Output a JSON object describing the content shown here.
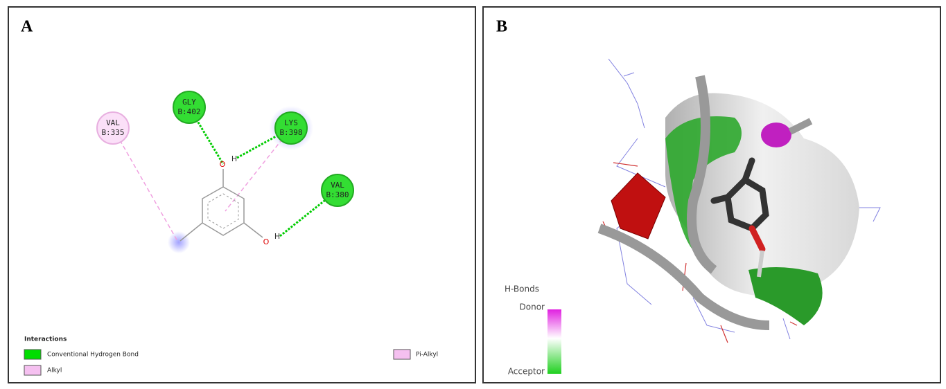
{
  "panel_a": {
    "label": "A",
    "residues": [
      {
        "name": "GLY",
        "id": "B:402",
        "kind": "hbond"
      },
      {
        "name": "LYS",
        "id": "B:398",
        "kind": "hbond"
      },
      {
        "name": "VAL",
        "id": "B:335",
        "kind": "alkyl"
      },
      {
        "name": "VAL",
        "id": "B:380",
        "kind": "hbond"
      }
    ],
    "atoms": [
      "O",
      "H",
      "O",
      "H"
    ],
    "legend": {
      "title": "Interactions",
      "items": [
        "Conventional Hydrogen Bond",
        "Alkyl",
        "Pi-Alkyl"
      ]
    }
  },
  "panel_b": {
    "label": "B",
    "colorbar": {
      "title": "H-Bonds",
      "top": "Donor",
      "bottom": "Acceptor"
    }
  }
}
